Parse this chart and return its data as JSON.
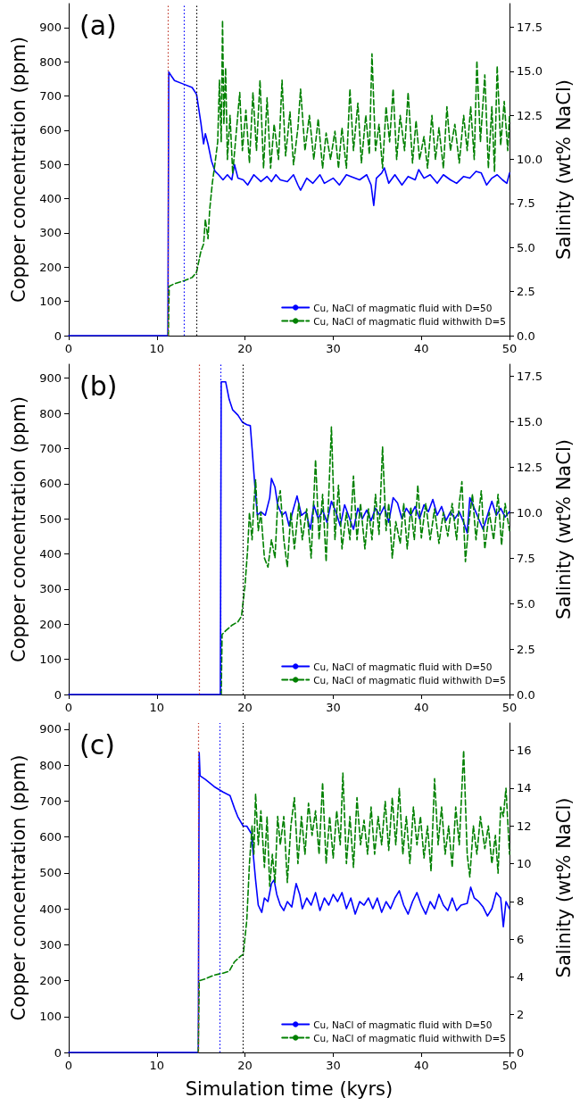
{
  "chart_data": [
    {
      "type": "line",
      "title": "(a)",
      "ylabel": "Copper concentration (ppm)",
      "y2label": "Salinity (wt% NaCl)",
      "legend": "bottom right",
      "grid": false,
      "marker": "none",
      "xlim": [
        0,
        50
      ],
      "xticks": [
        0,
        10,
        20,
        30,
        40,
        50
      ],
      "ylim": [
        0,
        970
      ],
      "yticks": [
        0,
        100,
        200,
        300,
        400,
        500,
        600,
        700,
        800,
        900
      ],
      "y2lim": [
        0,
        18.85
      ],
      "y2ticks": [
        {
          "value": 0,
          "label": "0.0"
        },
        {
          "value": 2.5,
          "label": "2.5"
        },
        {
          "value": 5,
          "label": "5.0"
        },
        {
          "value": 7.5,
          "label": "7.5"
        },
        {
          "value": 10,
          "label": "10.0"
        },
        {
          "value": 12.5,
          "label": "12.5"
        },
        {
          "value": 15,
          "label": "15.0"
        },
        {
          "value": 17.5,
          "label": "17.5"
        }
      ],
      "ref_lines": [
        {
          "axis": "x",
          "value": 11.3,
          "color": "#c0392b",
          "line_style": "dotted"
        },
        {
          "axis": "x",
          "value": 13.1,
          "color": "#0000ff",
          "line_style": "dotted"
        },
        {
          "axis": "x",
          "value": 14.5,
          "color": "#000000",
          "line_style": "dotted"
        }
      ],
      "series": [
        {
          "name": "Cu, NaCl of magmatic fluid with D=50",
          "color": "#0000ff",
          "line_style": "solid",
          "x": [
            0,
            11.25,
            11.35,
            11.6,
            12,
            13,
            14,
            14.5,
            15,
            15.3,
            15.5,
            15.8,
            16.2,
            16.6,
            17,
            17.5,
            18,
            18.5,
            18.8,
            19.2,
            19.8,
            20.3,
            21,
            21.8,
            22.5,
            23,
            23.5,
            24,
            24.8,
            25.5,
            26,
            26.3,
            27,
            27.7,
            28.5,
            29,
            30,
            30.7,
            31.5,
            32,
            33,
            33.8,
            34.3,
            34.6,
            34.9,
            35.5,
            35.8,
            36.3,
            37,
            37.8,
            38.5,
            39.3,
            39.7,
            40.3,
            41,
            41.8,
            42.5,
            43.3,
            44,
            44.8,
            45.5,
            46.2,
            46.8,
            47.4,
            48,
            48.6,
            49.2,
            49.7,
            50
          ],
          "values": [
            0,
            0,
            770,
            760,
            745,
            735,
            725,
            705,
            620,
            560,
            590,
            560,
            510,
            480,
            470,
            455,
            470,
            455,
            500,
            460,
            455,
            440,
            470,
            450,
            465,
            450,
            470,
            455,
            450,
            470,
            440,
            425,
            460,
            445,
            470,
            445,
            460,
            440,
            470,
            465,
            455,
            470,
            440,
            380,
            460,
            475,
            490,
            445,
            470,
            440,
            465,
            455,
            485,
            460,
            470,
            445,
            470,
            455,
            445,
            465,
            460,
            480,
            475,
            440,
            460,
            470,
            455,
            445,
            475
          ]
        },
        {
          "name": "Cu, NaCl of magmatic fluid withwith D=5",
          "color": "#008000",
          "line_style": "dashed",
          "axis": "y2",
          "x": [
            11.3,
            11.4,
            12,
            13,
            14,
            14.5,
            15,
            15.3,
            15.5,
            15.8,
            16,
            16.3,
            16.6,
            16.9,
            17.1,
            17.3,
            17.45,
            17.6,
            17.8,
            18,
            18.3,
            18.6,
            19,
            19.4,
            19.7,
            20.1,
            20.5,
            20.9,
            21.3,
            21.7,
            22.1,
            22.5,
            22.9,
            23.3,
            23.8,
            24.2,
            24.6,
            25.1,
            25.5,
            26,
            26.3,
            26.8,
            27.3,
            27.8,
            28.3,
            28.8,
            29.2,
            29.7,
            30.2,
            30.6,
            31,
            31.5,
            31.9,
            32.3,
            32.8,
            33.2,
            33.7,
            34.1,
            34.4,
            34.8,
            35.2,
            35.6,
            36,
            36.4,
            36.8,
            37.2,
            37.6,
            38.1,
            38.5,
            39,
            39.4,
            39.8,
            40.3,
            40.7,
            41.2,
            41.6,
            42,
            42.5,
            42.9,
            43.3,
            43.8,
            44.3,
            44.8,
            45.2,
            45.6,
            46,
            46.3,
            46.7,
            47.2,
            47.6,
            48,
            48.3,
            48.6,
            49,
            49.4,
            49.8,
            50
          ],
          "values": [
            0,
            2.8,
            2.95,
            3.1,
            3.3,
            3.6,
            4.8,
            5.2,
            6.6,
            5.5,
            7.2,
            8.7,
            9.8,
            11,
            14.5,
            11,
            17.9,
            12,
            15.2,
            10,
            12.5,
            9.2,
            11.5,
            13.8,
            10.5,
            12.8,
            9.8,
            13.8,
            10.5,
            14.5,
            9.5,
            13.5,
            9.5,
            12,
            10,
            14.5,
            10.2,
            12.7,
            9.7,
            11.8,
            14,
            10.5,
            12.5,
            10,
            12.3,
            9.5,
            11.5,
            10,
            11.6,
            9.5,
            11.8,
            9.5,
            14,
            10.5,
            13.2,
            9.8,
            12.5,
            10.3,
            16,
            10.5,
            12,
            9.5,
            13,
            11,
            14,
            10,
            12.5,
            10.5,
            13.8,
            9.8,
            12.2,
            10,
            11.3,
            9.5,
            12.5,
            10,
            11.8,
            9.5,
            13,
            10.5,
            12,
            9.8,
            12.5,
            10.5,
            13,
            10,
            15.6,
            11,
            14.8,
            9.5,
            13,
            9.3,
            15.3,
            10.8,
            13.3,
            10.5,
            12.5
          ]
        }
      ]
    },
    {
      "type": "line",
      "title": "(b)",
      "ylabel": "Copper concentration (ppm)",
      "y2label": "Salinity (wt% NaCl)",
      "legend": "bottom right",
      "grid": false,
      "marker": "none",
      "xlim": [
        0,
        50
      ],
      "xticks": [
        0,
        10,
        20,
        30,
        40,
        50
      ],
      "ylim": [
        0,
        940
      ],
      "yticks": [
        0,
        100,
        200,
        300,
        400,
        500,
        600,
        700,
        800,
        900
      ],
      "y2lim": [
        0,
        18.15
      ],
      "y2ticks": [
        {
          "value": 0,
          "label": "0.0"
        },
        {
          "value": 2.5,
          "label": "2.5"
        },
        {
          "value": 5,
          "label": "5.0"
        },
        {
          "value": 7.5,
          "label": "7.5"
        },
        {
          "value": 10,
          "label": "10.0"
        },
        {
          "value": 12.5,
          "label": "12.5"
        },
        {
          "value": 15,
          "label": "15.0"
        },
        {
          "value": 17.5,
          "label": "17.5"
        }
      ],
      "ref_lines": [
        {
          "axis": "x",
          "value": 14.8,
          "color": "#c0392b",
          "line_style": "dotted"
        },
        {
          "axis": "x",
          "value": 17.2,
          "color": "#0000ff",
          "line_style": "dotted"
        },
        {
          "axis": "x",
          "value": 19.8,
          "color": "#000000",
          "line_style": "dotted"
        }
      ],
      "series": [
        {
          "name": "Cu, NaCl of magmatic fluid with D=50",
          "color": "#0000ff",
          "line_style": "solid",
          "x": [
            0,
            17.2,
            17.3,
            17.8,
            18.2,
            18.6,
            19.2,
            19.7,
            20.2,
            20.6,
            20.8,
            21.1,
            21.4,
            21.8,
            22.3,
            22.8,
            23,
            23.4,
            23.7,
            24.2,
            24.6,
            25,
            25.4,
            25.9,
            26.4,
            26.9,
            27.4,
            27.8,
            28.3,
            28.8,
            29.3,
            29.8,
            30.3,
            30.8,
            31.3,
            31.8,
            32.3,
            32.8,
            33.3,
            33.8,
            34.3,
            34.8,
            35.3,
            35.8,
            36.3,
            36.8,
            37.3,
            37.8,
            38.3,
            38.8,
            39.3,
            39.8,
            40.3,
            40.8,
            41.3,
            41.8,
            42.3,
            42.8,
            43.3,
            43.8,
            44.3,
            44.8,
            45.2,
            45.5,
            46,
            46.5,
            47,
            47.5,
            48,
            48.5,
            49,
            49.5,
            50
          ],
          "values": [
            0,
            0,
            890,
            890,
            840,
            810,
            795,
            775,
            768,
            765,
            700,
            600,
            510,
            520,
            510,
            560,
            615,
            590,
            540,
            510,
            520,
            480,
            520,
            565,
            510,
            520,
            470,
            540,
            500,
            525,
            490,
            550,
            520,
            480,
            540,
            505,
            470,
            530,
            500,
            525,
            495,
            530,
            510,
            535,
            490,
            560,
            545,
            500,
            530,
            510,
            535,
            500,
            540,
            520,
            555,
            510,
            535,
            495,
            520,
            500,
            520,
            490,
            460,
            560,
            530,
            500,
            470,
            510,
            550,
            510,
            530,
            505,
            520
          ]
        },
        {
          "name": "Cu, NaCl of magmatic fluid withwith D=5",
          "color": "#008000",
          "line_style": "dashed",
          "axis": "y2",
          "x": [
            17.3,
            17.4,
            17.8,
            18.5,
            19.2,
            19.6,
            20,
            20.3,
            20.5,
            20.8,
            21,
            21.2,
            21.5,
            21.8,
            22.2,
            22.6,
            23,
            23.4,
            23.7,
            24,
            24.4,
            24.8,
            25.2,
            25.6,
            26.1,
            26.5,
            27,
            27.5,
            28,
            28.4,
            28.8,
            29.2,
            29.8,
            30.2,
            30.6,
            31,
            31.5,
            31.9,
            32.3,
            32.7,
            33.1,
            33.6,
            34,
            34.4,
            34.8,
            35.2,
            35.6,
            36,
            36.3,
            36.7,
            37.1,
            37.6,
            38,
            38.4,
            38.8,
            39.2,
            39.6,
            40,
            40.5,
            41,
            41.5,
            42,
            42.5,
            43,
            43.5,
            44,
            44.3,
            44.6,
            45,
            45.4,
            45.8,
            46.2,
            46.8,
            47.2,
            47.7,
            48.2,
            48.7,
            49.1,
            49.5,
            50
          ],
          "values": [
            0,
            3.3,
            3.5,
            3.8,
            4,
            4.3,
            6,
            8,
            10,
            8.5,
            10.5,
            11.8,
            9,
            10,
            7.5,
            7,
            8.5,
            7.5,
            10.5,
            11.2,
            8.5,
            7,
            10,
            8,
            10.5,
            8.5,
            10.2,
            7.5,
            12.9,
            8.5,
            11,
            7.3,
            14.7,
            8.5,
            11.5,
            8,
            10,
            8.5,
            12,
            8.5,
            10.5,
            8,
            10.2,
            8.5,
            11,
            8.8,
            13.6,
            9,
            10.5,
            7.5,
            9.5,
            8.3,
            10.5,
            8,
            10.3,
            8.5,
            11.5,
            8.6,
            10.5,
            8.5,
            10.2,
            8.3,
            10,
            8.7,
            10.5,
            8.5,
            10.5,
            11.7,
            7.3,
            9.5,
            11,
            8.5,
            11.2,
            8,
            10,
            8.5,
            11,
            8.2,
            10.5,
            9
          ]
        }
      ]
    },
    {
      "type": "line",
      "title": "(c)",
      "xlabel": "Simulation time (kyrs)",
      "ylabel": "Copper concentration (ppm)",
      "y2label": "Salinity (wt% NaCl)",
      "legend": "bottom right",
      "grid": false,
      "marker": "none",
      "xlim": [
        0,
        50
      ],
      "xticks": [
        0,
        10,
        20,
        30,
        40,
        50
      ],
      "ylim": [
        0,
        917
      ],
      "yticks": [
        0,
        100,
        200,
        300,
        400,
        500,
        600,
        700,
        800,
        900
      ],
      "y2lim": [
        0,
        17.45
      ],
      "y2ticks": [
        0,
        2,
        4,
        6,
        8,
        10,
        12,
        14,
        16
      ],
      "ref_lines": [
        {
          "axis": "x",
          "value": 14.7,
          "color": "#c0392b",
          "line_style": "dotted"
        },
        {
          "axis": "x",
          "value": 17.1,
          "color": "#0000ff",
          "line_style": "dotted"
        },
        {
          "axis": "x",
          "value": 19.8,
          "color": "#000000",
          "line_style": "dotted"
        }
      ],
      "series": [
        {
          "name": "Cu, NaCl of magmatic fluid with D=50",
          "color": "#0000ff",
          "line_style": "solid",
          "x": [
            0,
            14.7,
            14.8,
            14.9,
            15.5,
            16.5,
            17.5,
            18.3,
            18.8,
            19.2,
            19.8,
            20.2,
            20.7,
            20.9,
            21.2,
            21.5,
            21.9,
            22.2,
            22.6,
            23,
            23.3,
            23.6,
            24,
            24.4,
            24.8,
            25.3,
            25.8,
            26.2,
            26.5,
            27,
            27.5,
            28,
            28.5,
            29,
            29.5,
            30,
            30.5,
            31,
            31.5,
            32,
            32.5,
            33,
            33.5,
            34,
            34.5,
            35,
            35.5,
            36,
            36.5,
            37,
            37.5,
            38,
            38.5,
            39,
            39.5,
            40,
            40.5,
            41,
            41.5,
            42,
            42.5,
            43,
            43.5,
            44,
            44.5,
            45.2,
            45.6,
            46,
            46.5,
            47,
            47.5,
            48,
            48.5,
            49,
            49.3,
            49.6,
            50
          ],
          "values": [
            0,
            0,
            835,
            770,
            760,
            740,
            725,
            715,
            680,
            655,
            630,
            630,
            610,
            560,
            480,
            410,
            390,
            430,
            420,
            470,
            480,
            440,
            410,
            395,
            420,
            405,
            470,
            440,
            400,
            430,
            410,
            445,
            395,
            430,
            410,
            440,
            420,
            445,
            400,
            430,
            385,
            420,
            410,
            430,
            400,
            430,
            390,
            420,
            400,
            430,
            450,
            410,
            385,
            420,
            445,
            410,
            385,
            420,
            400,
            440,
            410,
            395,
            430,
            395,
            410,
            415,
            460,
            430,
            420,
            405,
            380,
            400,
            445,
            430,
            350,
            420,
            400
          ]
        },
        {
          "name": "Cu, NaCl of magmatic fluid withwith D=5",
          "color": "#008000",
          "line_style": "dashed",
          "axis": "y2",
          "x": [
            14.7,
            14.8,
            15.5,
            16.5,
            17.5,
            18.2,
            18.8,
            19.5,
            19.8,
            20.2,
            20.5,
            20.8,
            21,
            21.2,
            21.5,
            21.8,
            22.2,
            22.5,
            22.8,
            23.1,
            23.4,
            23.7,
            24,
            24.4,
            24.8,
            25.2,
            25.6,
            26,
            26.4,
            26.8,
            27.2,
            27.6,
            28,
            28.4,
            28.8,
            29.2,
            29.6,
            30,
            30.4,
            30.8,
            31.1,
            31.5,
            31.9,
            32.3,
            32.7,
            33.1,
            33.5,
            33.9,
            34.3,
            34.7,
            35.1,
            35.5,
            35.9,
            36.3,
            36.7,
            37.1,
            37.5,
            37.9,
            38.3,
            38.7,
            39.1,
            39.5,
            39.9,
            40.3,
            40.7,
            41.1,
            41.5,
            41.9,
            42.3,
            42.7,
            43.1,
            43.5,
            43.9,
            44.3,
            44.8,
            45.2,
            45.5,
            45.9,
            46.3,
            46.7,
            47.2,
            47.6,
            48,
            48.4,
            48.7,
            49,
            49.3,
            49.6,
            50
          ],
          "values": [
            0,
            3.8,
            3.9,
            4.1,
            4.2,
            4.3,
            4.8,
            5.1,
            5.2,
            7,
            10,
            12,
            10.5,
            13.7,
            11,
            12.8,
            9.8,
            12.5,
            8.8,
            10.5,
            9,
            12.5,
            11,
            12.5,
            9,
            12,
            13.5,
            10,
            12.5,
            10.5,
            13.2,
            11.5,
            12.8,
            10.5,
            14.3,
            10,
            12.5,
            10.3,
            12.8,
            11,
            14.8,
            10,
            12.5,
            9.8,
            13.5,
            11,
            12.3,
            10.5,
            13,
            10.5,
            12.5,
            11,
            13.3,
            10.7,
            13.5,
            11,
            14,
            10.5,
            12.5,
            10,
            13,
            11,
            12.5,
            10.3,
            12,
            9.6,
            14.5,
            11,
            13,
            10.5,
            12,
            9.8,
            13,
            11,
            16,
            10.5,
            9.3,
            12,
            10.5,
            12.5,
            10.8,
            12,
            10,
            11.5,
            9.5,
            13,
            12.5,
            14,
            10.5
          ]
        }
      ]
    }
  ]
}
